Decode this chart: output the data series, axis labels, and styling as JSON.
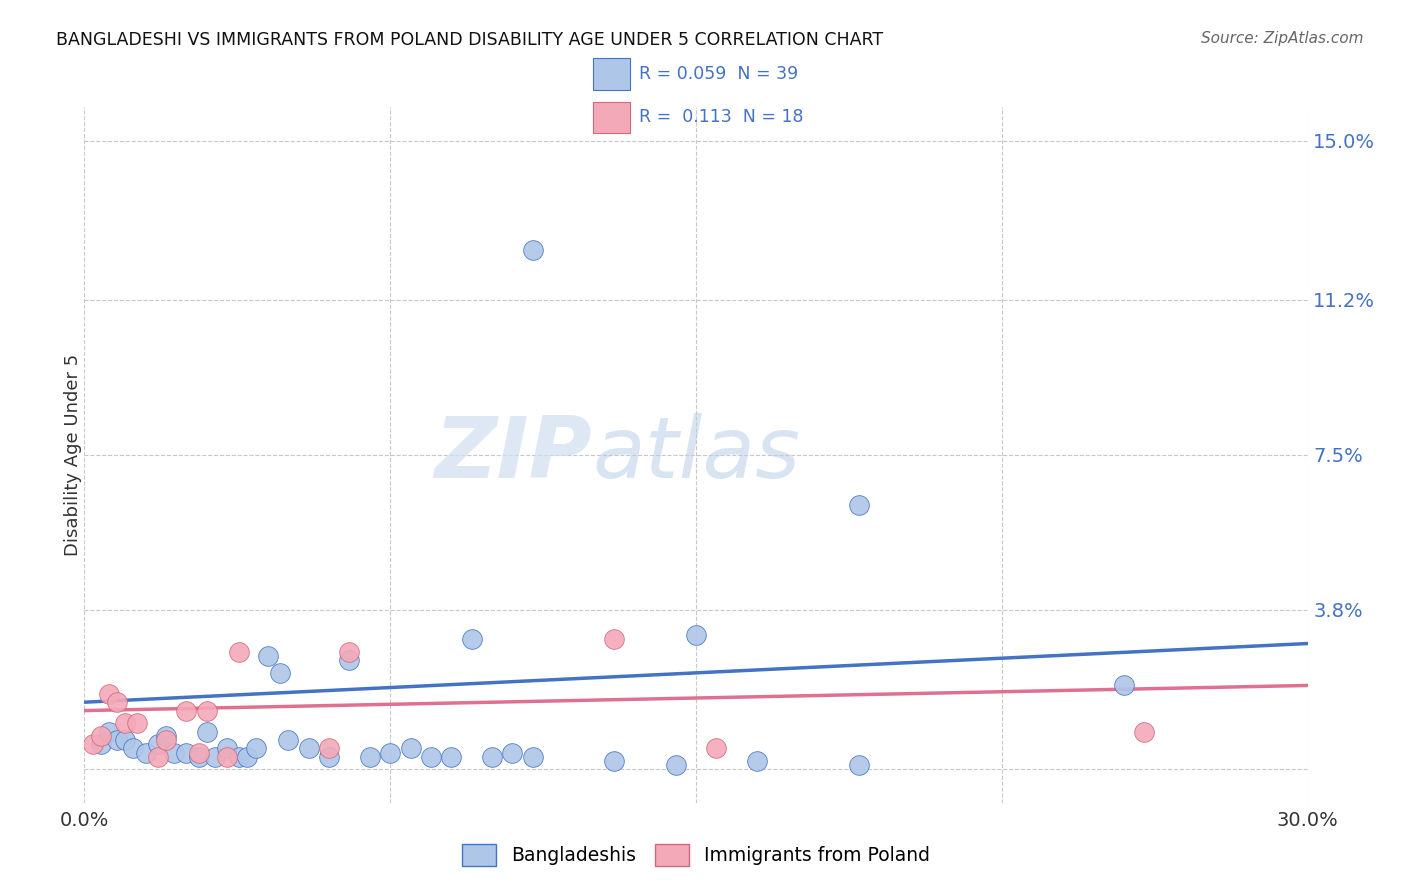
{
  "title": "BANGLADESHI VS IMMIGRANTS FROM POLAND DISABILITY AGE UNDER 5 CORRELATION CHART",
  "source": "Source: ZipAtlas.com",
  "ylabel": "Disability Age Under 5",
  "xlim": [
    0.0,
    0.3
  ],
  "ylim": [
    -0.008,
    0.158
  ],
  "yticks": [
    0.0,
    0.038,
    0.075,
    0.112,
    0.15
  ],
  "ytick_labels": [
    "",
    "3.8%",
    "7.5%",
    "11.2%",
    "15.0%"
  ],
  "xticks": [
    0.0,
    0.075,
    0.15,
    0.225,
    0.3
  ],
  "xtick_labels": [
    "0.0%",
    "",
    "",
    "",
    "30.0%"
  ],
  "color_blue": "#aec6e8",
  "color_pink": "#f4a9b8",
  "line_blue": "#4472c4",
  "line_pink": "#e07090",
  "text_blue": "#4472c4",
  "watermark_color": "#d0e4f0",
  "background": "#ffffff",
  "grid_color": "#c8c8c8",
  "blue_scatter": [
    [
      0.004,
      0.006
    ],
    [
      0.006,
      0.009
    ],
    [
      0.008,
      0.007
    ],
    [
      0.01,
      0.007
    ],
    [
      0.012,
      0.005
    ],
    [
      0.015,
      0.004
    ],
    [
      0.018,
      0.006
    ],
    [
      0.02,
      0.008
    ],
    [
      0.022,
      0.004
    ],
    [
      0.025,
      0.004
    ],
    [
      0.028,
      0.003
    ],
    [
      0.03,
      0.009
    ],
    [
      0.032,
      0.003
    ],
    [
      0.035,
      0.005
    ],
    [
      0.038,
      0.003
    ],
    [
      0.04,
      0.003
    ],
    [
      0.042,
      0.005
    ],
    [
      0.045,
      0.027
    ],
    [
      0.048,
      0.023
    ],
    [
      0.05,
      0.007
    ],
    [
      0.055,
      0.005
    ],
    [
      0.06,
      0.003
    ],
    [
      0.065,
      0.026
    ],
    [
      0.07,
      0.003
    ],
    [
      0.075,
      0.004
    ],
    [
      0.08,
      0.005
    ],
    [
      0.085,
      0.003
    ],
    [
      0.09,
      0.003
    ],
    [
      0.095,
      0.031
    ],
    [
      0.1,
      0.003
    ],
    [
      0.105,
      0.004
    ],
    [
      0.11,
      0.003
    ],
    [
      0.11,
      0.124
    ],
    [
      0.13,
      0.002
    ],
    [
      0.145,
      0.001
    ],
    [
      0.15,
      0.032
    ],
    [
      0.165,
      0.002
    ],
    [
      0.19,
      0.001
    ],
    [
      0.19,
      0.063
    ],
    [
      0.255,
      0.02
    ]
  ],
  "pink_scatter": [
    [
      0.002,
      0.006
    ],
    [
      0.004,
      0.008
    ],
    [
      0.006,
      0.018
    ],
    [
      0.008,
      0.016
    ],
    [
      0.01,
      0.011
    ],
    [
      0.013,
      0.011
    ],
    [
      0.018,
      0.003
    ],
    [
      0.02,
      0.007
    ],
    [
      0.025,
      0.014
    ],
    [
      0.028,
      0.004
    ],
    [
      0.03,
      0.014
    ],
    [
      0.035,
      0.003
    ],
    [
      0.038,
      0.028
    ],
    [
      0.06,
      0.005
    ],
    [
      0.065,
      0.028
    ],
    [
      0.13,
      0.031
    ],
    [
      0.155,
      0.005
    ],
    [
      0.26,
      0.009
    ]
  ],
  "blue_line_x": [
    0.0,
    0.3
  ],
  "blue_line_y": [
    0.016,
    0.03
  ],
  "pink_line_x": [
    0.0,
    0.3
  ],
  "pink_line_y": [
    0.014,
    0.02
  ]
}
